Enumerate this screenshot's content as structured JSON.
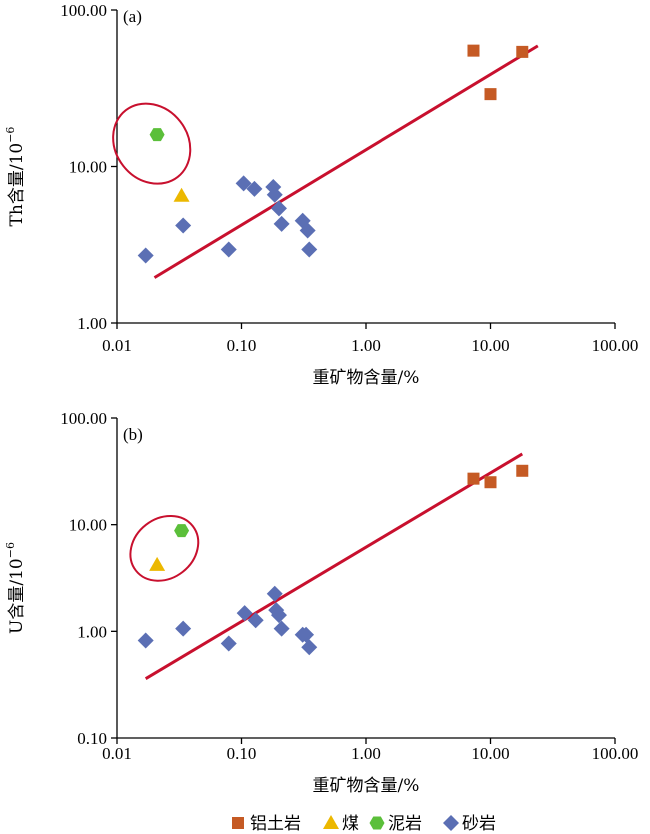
{
  "legend": [
    {
      "label": "铝土岩",
      "marker": "square",
      "color": "#c55a24"
    },
    {
      "label": "煤",
      "marker": "triangle",
      "color": "#ecb800"
    },
    {
      "label": "泥岩",
      "marker": "hexagon",
      "color": "#5bbf3a"
    },
    {
      "label": "砂岩",
      "marker": "diamond",
      "color": "#5b6fb4"
    }
  ],
  "colors": {
    "fit_line": "#c8102e",
    "ellipse": "#c8102e",
    "axis": "#000000"
  },
  "chart_data": [
    {
      "type": "scatter",
      "panel_label": "(a)",
      "xlabel": "重矿物含量/%",
      "ylabel": "Th含量/10",
      "ylabel_sup": "−6",
      "xscale": "log",
      "yscale": "log",
      "xlim": [
        0.01,
        100
      ],
      "ylim": [
        1,
        100
      ],
      "xticks": [
        "0.01",
        "0.10",
        "1.00",
        "10.00",
        "100.00"
      ],
      "yticks": [
        "1.00",
        "10.00",
        "100.00"
      ],
      "grid": false,
      "series": [
        {
          "name": "铝土岩",
          "points": [
            [
              7.3,
              55
            ],
            [
              10.0,
              29
            ],
            [
              18.0,
              54
            ]
          ]
        },
        {
          "name": "煤",
          "points": [
            [
              0.033,
              6.5
            ]
          ]
        },
        {
          "name": "泥岩",
          "points": [
            [
              0.021,
              16
            ]
          ]
        },
        {
          "name": "砂岩",
          "points": [
            [
              0.017,
              2.7
            ],
            [
              0.034,
              4.2
            ],
            [
              0.079,
              2.95
            ],
            [
              0.104,
              7.8
            ],
            [
              0.127,
              7.2
            ],
            [
              0.18,
              7.4
            ],
            [
              0.185,
              6.6
            ],
            [
              0.2,
              5.4
            ],
            [
              0.21,
              4.3
            ],
            [
              0.31,
              4.5
            ],
            [
              0.34,
              3.9
            ],
            [
              0.35,
              2.95
            ]
          ]
        }
      ],
      "fit_line": [
        [
          0.02,
          1.95
        ],
        [
          24,
          59
        ]
      ],
      "highlight_ellipse": {
        "center": [
          0.019,
          14
        ],
        "rx_decades": 0.29,
        "ry_decades": 0.27
      }
    },
    {
      "type": "scatter",
      "panel_label": "(b)",
      "xlabel": "重矿物含量/%",
      "ylabel": "U含量/10",
      "ylabel_sup": "−6",
      "xscale": "log",
      "yscale": "log",
      "xlim": [
        0.01,
        100
      ],
      "ylim": [
        0.1,
        100
      ],
      "xticks": [
        "0.01",
        "0.10",
        "1.00",
        "10.00",
        "100.00"
      ],
      "yticks": [
        "0.10",
        "1.00",
        "10.00",
        "100.00"
      ],
      "grid": false,
      "series": [
        {
          "name": "铝土岩",
          "points": [
            [
              7.3,
              27
            ],
            [
              10.0,
              25
            ],
            [
              18.0,
              32
            ]
          ]
        },
        {
          "name": "煤",
          "points": [
            [
              0.021,
              4.2
            ]
          ]
        },
        {
          "name": "泥岩",
          "points": [
            [
              0.033,
              8.8
            ]
          ]
        },
        {
          "name": "砂岩",
          "points": [
            [
              0.017,
              0.82
            ],
            [
              0.034,
              1.06
            ],
            [
              0.079,
              0.77
            ],
            [
              0.106,
              1.48
            ],
            [
              0.13,
              1.27
            ],
            [
              0.185,
              2.25
            ],
            [
              0.19,
              1.58
            ],
            [
              0.2,
              1.42
            ],
            [
              0.21,
              1.06
            ],
            [
              0.31,
              0.93
            ],
            [
              0.33,
              0.93
            ],
            [
              0.35,
              0.71
            ]
          ]
        }
      ],
      "fit_line": [
        [
          0.017,
          0.36
        ],
        [
          18,
          46
        ]
      ],
      "highlight_ellipse": {
        "center": [
          0.024,
          6.0
        ],
        "rx_decades": 0.29,
        "ry_decades": 0.28
      }
    }
  ]
}
